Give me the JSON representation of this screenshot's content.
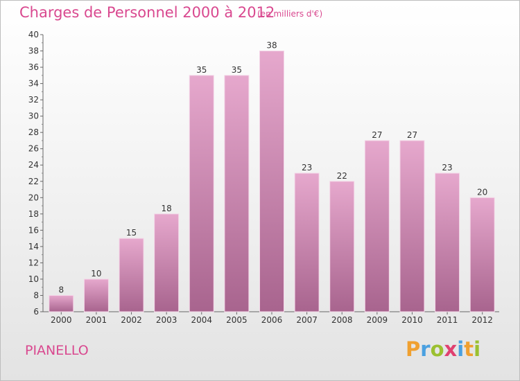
{
  "title": "Charges de Personnel 2000 à 2012",
  "subtitle": "(en milliers d'€)",
  "commune": "PIANELLO",
  "brand": "Proxiti",
  "colors": {
    "title": "#d9488f",
    "bar_top": "#e3a3c9",
    "bar_bottom": "#a8658f"
  },
  "chart_data": {
    "type": "bar",
    "categories": [
      "2000",
      "2001",
      "2002",
      "2003",
      "2004",
      "2005",
      "2006",
      "2007",
      "2008",
      "2009",
      "2010",
      "2011",
      "2012"
    ],
    "values": [
      8,
      10,
      15,
      18,
      35,
      35,
      38,
      23,
      22,
      27,
      27,
      23,
      20
    ],
    "ylim": [
      6,
      40
    ],
    "yticks": [
      6,
      8,
      10,
      12,
      14,
      16,
      18,
      20,
      22,
      24,
      26,
      28,
      30,
      32,
      34,
      36,
      38,
      40
    ],
    "xlabel": "",
    "ylabel": "",
    "grid": false,
    "legend": "none"
  }
}
